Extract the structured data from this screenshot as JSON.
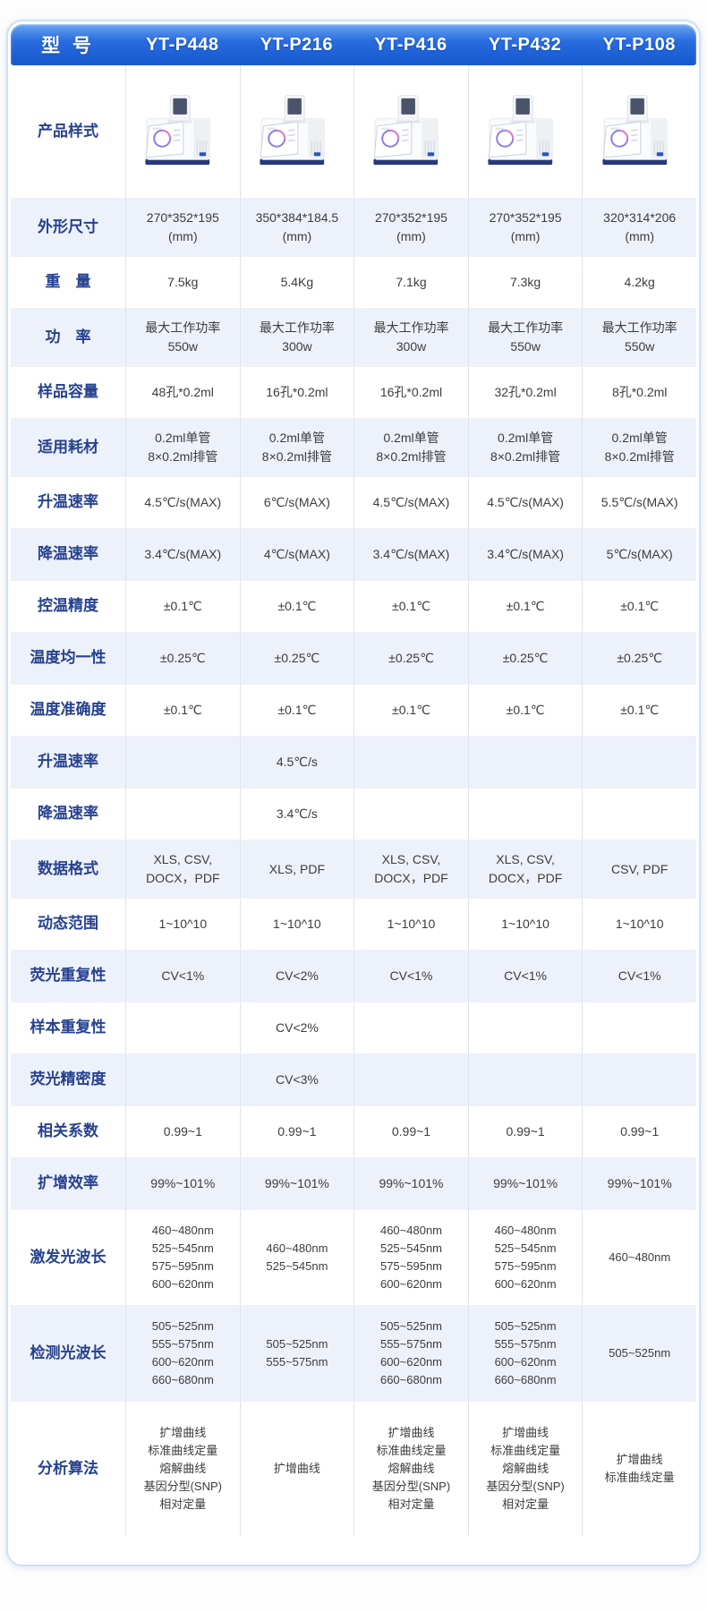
{
  "colors": {
    "header_blue": "#1f63d8",
    "header_blue_light": "#6ba4f0",
    "label_navy": "#26418f",
    "row_alt_bg": "#edf1f9",
    "card_border": "#cfe0f6",
    "value_text": "#3c3c3c"
  },
  "header": {
    "label": "型 号",
    "models": [
      "YT-P448",
      "YT-P216",
      "YT-P416",
      "YT-P432",
      "YT-P108"
    ]
  },
  "table": {
    "product_label": "产品样式",
    "product_image_names": [
      "pcr-machine-yt-p448",
      "pcr-machine-yt-p216",
      "pcr-machine-yt-p416",
      "pcr-machine-yt-p432",
      "pcr-machine-yt-p108"
    ],
    "rows": [
      {
        "label": "外形尺寸",
        "values": [
          "270*352*195\n(mm)",
          "350*384*184.5\n(mm)",
          "270*352*195\n(mm)",
          "270*352*195\n(mm)",
          "320*314*206\n(mm)"
        ]
      },
      {
        "label": "重　量",
        "values": [
          "7.5kg",
          "5.4Kg",
          "7.1kg",
          "7.3kg",
          "4.2kg"
        ]
      },
      {
        "label": "功　率",
        "values": [
          "最大工作功率\n550w",
          "最大工作功率\n300w",
          "最大工作功率\n300w",
          "最大工作功率\n550w",
          "最大工作功率\n550w"
        ]
      },
      {
        "label": "样品容量",
        "values": [
          "48孔*0.2ml",
          "16孔*0.2ml",
          "16孔*0.2ml",
          "32孔*0.2ml",
          "8孔*0.2ml"
        ]
      },
      {
        "label": "适用耗材",
        "values": [
          "0.2ml单管\n8×0.2ml排管",
          "0.2ml单管\n8×0.2ml排管",
          "0.2ml单管\n8×0.2ml排管",
          "0.2ml单管\n8×0.2ml排管",
          "0.2ml单管\n8×0.2ml排管"
        ]
      },
      {
        "label": "升温速率",
        "values": [
          "4.5℃/s(MAX)",
          "6℃/s(MAX)",
          "4.5℃/s(MAX)",
          "4.5℃/s(MAX)",
          "5.5℃/s(MAX)"
        ]
      },
      {
        "label": "降温速率",
        "values": [
          "3.4℃/s(MAX)",
          "4℃/s(MAX)",
          "3.4℃/s(MAX)",
          "3.4℃/s(MAX)",
          "5℃/s(MAX)"
        ]
      },
      {
        "label": "控温精度",
        "values": [
          "±0.1℃",
          "±0.1℃",
          "±0.1℃",
          "±0.1℃",
          "±0.1℃"
        ]
      },
      {
        "label": "温度均一性",
        "values": [
          "±0.25℃",
          "±0.25℃",
          "±0.25℃",
          "±0.25℃",
          "±0.25℃"
        ]
      },
      {
        "label": "温度准确度",
        "values": [
          "±0.1℃",
          "±0.1℃",
          "±0.1℃",
          "±0.1℃",
          "±0.1℃"
        ]
      },
      {
        "label": "升温速率",
        "values": [
          "",
          "4.5℃/s",
          "",
          "",
          ""
        ]
      },
      {
        "label": "降温速率",
        "values": [
          "",
          "3.4℃/s",
          "",
          "",
          ""
        ]
      },
      {
        "label": "数据格式",
        "values": [
          "XLS, CSV,\nDOCX，PDF",
          "XLS, PDF",
          "XLS, CSV,\nDOCX，PDF",
          "XLS, CSV,\nDOCX，PDF",
          "CSV, PDF"
        ]
      },
      {
        "label": "动态范围",
        "values": [
          "1~10^10",
          "1~10^10",
          "1~10^10",
          "1~10^10",
          "1~10^10"
        ]
      },
      {
        "label": "荧光重复性",
        "values": [
          "CV<1%",
          "CV<2%",
          "CV<1%",
          "CV<1%",
          "CV<1%"
        ]
      },
      {
        "label": "样本重复性",
        "values": [
          "",
          "CV<2%",
          "",
          "",
          ""
        ]
      },
      {
        "label": "荧光精密度",
        "values": [
          "",
          "CV<3%",
          "",
          "",
          ""
        ]
      },
      {
        "label": "相关系数",
        "values": [
          "0.99~1",
          "0.99~1",
          "0.99~1",
          "0.99~1",
          "0.99~1"
        ]
      },
      {
        "label": "扩增效率",
        "values": [
          "99%~101%",
          "99%~101%",
          "99%~101%",
          "99%~101%",
          "99%~101%"
        ]
      },
      {
        "label": "激发光波长",
        "values": [
          "460~480nm\n525~545nm\n575~595nm\n600~620nm",
          "460~480nm\n525~545nm",
          "460~480nm\n525~545nm\n575~595nm\n600~620nm",
          "460~480nm\n525~545nm\n575~595nm\n600~620nm",
          "460~480nm"
        ]
      },
      {
        "label": "检测光波长",
        "values": [
          "505~525nm\n555~575nm\n600~620nm\n660~680nm",
          "505~525nm\n555~575nm",
          "505~525nm\n555~575nm\n600~620nm\n660~680nm",
          "505~525nm\n555~575nm\n600~620nm\n660~680nm",
          "505~525nm"
        ]
      },
      {
        "label": "分析算法",
        "values": [
          "扩增曲线\n标准曲线定量\n熔解曲线\n基因分型(SNP)\n相对定量",
          "扩增曲线",
          "扩增曲线\n标准曲线定量\n熔解曲线\n基因分型(SNP)\n相对定量",
          "扩增曲线\n标准曲线定量\n熔解曲线\n基因分型(SNP)\n相对定量",
          "扩增曲线\n标准曲线定量"
        ]
      }
    ]
  }
}
